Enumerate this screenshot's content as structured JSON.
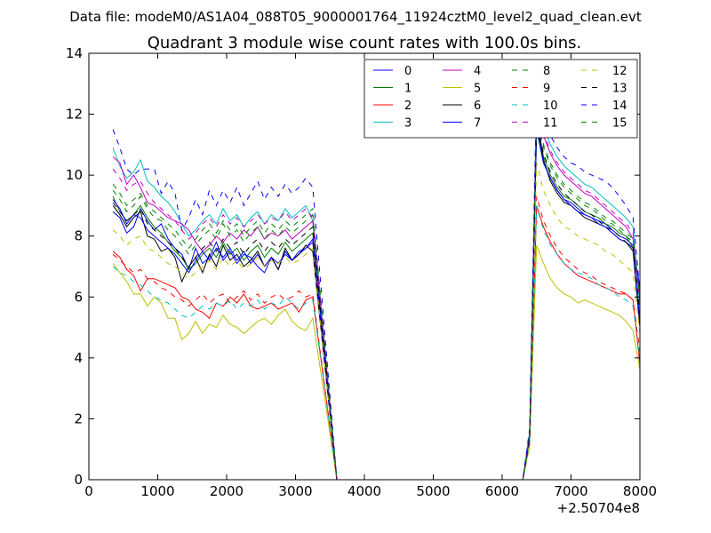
{
  "chart_data": {
    "type": "line",
    "suptitle": "Data file: modeM0/AS1A04_088T05_9000001764_11924cztM0_level2_quad_clean.evt",
    "title": "Quadrant 3 module wise count rates with 100.0s bins.",
    "xlabel": "",
    "ylabel": "",
    "x_offset_label": "+2.50704e8",
    "xlim": [
      0,
      8000
    ],
    "ylim": [
      0,
      14
    ],
    "xticks": [
      0,
      1000,
      2000,
      3000,
      4000,
      5000,
      6000,
      7000,
      8000
    ],
    "yticks": [
      0,
      2,
      4,
      6,
      8,
      10,
      12,
      14
    ],
    "grid": false,
    "legend_position": "top-right",
    "legend_columns": 4,
    "x_start": 350,
    "x_step": 100,
    "gap_interval": [
      3600,
      6300
    ],
    "series": [
      {
        "name": "0",
        "color": "#0000ff",
        "dashed": false,
        "first_segment": [
          8.8,
          8.6,
          8.1,
          8.3,
          8.9,
          8.5,
          8.2,
          8.4,
          7.9,
          7.6,
          7.4,
          6.9,
          7.6,
          7.1,
          7.3,
          7.8,
          7.2,
          7.5,
          7.1,
          7.4,
          7.3,
          7.0,
          6.8,
          7.3,
          6.9,
          7.5,
          7.2,
          7.4,
          7.6,
          7.8,
          0
        ],
        "second_segment": [
          0,
          1.4,
          11.5,
          10.4,
          9.9,
          9.5,
          9.2,
          9.1,
          8.9,
          8.7,
          8.6,
          8.5,
          8.4,
          8.2,
          8.0,
          7.9,
          7.7,
          6.3
        ]
      },
      {
        "name": "1",
        "color": "#008000",
        "dashed": false,
        "first_segment": [
          9.3,
          8.8,
          8.5,
          8.7,
          9.0,
          8.6,
          8.3,
          8.1,
          7.8,
          7.5,
          7.3,
          6.9,
          7.1,
          7.4,
          7.6,
          7.3,
          7.8,
          7.4,
          7.6,
          7.2,
          7.5,
          7.7,
          7.3,
          7.6,
          7.4,
          7.8,
          7.5,
          7.7,
          7.9,
          8.1,
          0
        ],
        "second_segment": [
          0,
          1.4,
          11.9,
          10.6,
          10.0,
          9.6,
          9.3,
          9.2,
          9.0,
          8.8,
          8.7,
          8.6,
          8.4,
          8.3,
          8.1,
          8.0,
          7.6,
          6.1
        ]
      },
      {
        "name": "2",
        "color": "#ff0000",
        "dashed": false,
        "first_segment": [
          7.5,
          7.3,
          6.9,
          6.7,
          6.2,
          6.6,
          6.6,
          6.5,
          6.4,
          6.3,
          6.0,
          5.9,
          5.6,
          5.5,
          5.3,
          5.8,
          5.7,
          6.0,
          5.8,
          6.1,
          5.7,
          5.6,
          5.7,
          5.8,
          5.6,
          5.7,
          5.8,
          5.5,
          5.9,
          6.0,
          0
        ],
        "second_segment": [
          0,
          1.2,
          9.0,
          8.3,
          7.8,
          7.4,
          7.1,
          6.9,
          6.7,
          6.6,
          6.5,
          6.4,
          6.3,
          6.2,
          6.1,
          6.1,
          5.9,
          3.8
        ]
      },
      {
        "name": "3",
        "color": "#00bfbf",
        "dashed": false,
        "first_segment": [
          10.9,
          10.3,
          9.9,
          10.1,
          10.5,
          9.8,
          9.6,
          9.3,
          9.1,
          8.8,
          8.4,
          8.0,
          8.2,
          8.5,
          8.7,
          8.4,
          8.9,
          8.5,
          8.7,
          8.3,
          8.6,
          8.8,
          8.4,
          8.7,
          8.5,
          8.9,
          8.6,
          8.8,
          9.0,
          8.5,
          0
        ],
        "second_segment": [
          0,
          1.6,
          12.6,
          11.6,
          11.0,
          10.6,
          10.3,
          10.1,
          9.9,
          9.7,
          9.6,
          9.4,
          9.2,
          9.0,
          8.8,
          8.6,
          8.3,
          5.5
        ]
      },
      {
        "name": "4",
        "color": "#bf00bf",
        "dashed": false,
        "first_segment": [
          10.6,
          10.4,
          9.7,
          10.0,
          9.6,
          9.1,
          9.0,
          8.8,
          8.6,
          8.5,
          8.4,
          8.2,
          7.8,
          7.5,
          7.7,
          8.0,
          7.8,
          8.1,
          7.9,
          8.2,
          8.0,
          8.3,
          7.9,
          8.1,
          8.0,
          8.2,
          7.9,
          8.1,
          8.3,
          8.5,
          0
        ],
        "second_segment": [
          0,
          1.5,
          12.2,
          11.3,
          10.7,
          10.3,
          10.0,
          9.8,
          9.6,
          9.4,
          9.3,
          9.1,
          8.9,
          8.7,
          8.5,
          8.3,
          7.9,
          5.9
        ]
      },
      {
        "name": "5",
        "color": "#bfbf00",
        "dashed": false,
        "first_segment": [
          7.1,
          6.8,
          6.5,
          6.1,
          6.1,
          5.7,
          6.0,
          5.8,
          5.3,
          5.3,
          4.6,
          4.8,
          5.2,
          4.8,
          5.1,
          5.0,
          5.4,
          5.1,
          5.0,
          4.8,
          5.0,
          5.2,
          5.3,
          5.1,
          5.4,
          5.6,
          5.2,
          5.0,
          4.9,
          5.3,
          0
        ],
        "second_segment": [
          0,
          1.1,
          7.7,
          7.1,
          6.6,
          6.3,
          6.1,
          6.0,
          5.8,
          5.9,
          5.8,
          5.7,
          5.6,
          5.5,
          5.4,
          5.2,
          4.9,
          3.6
        ]
      },
      {
        "name": "6",
        "color": "#000000",
        "dashed": false,
        "first_segment": [
          9.0,
          8.7,
          8.3,
          8.6,
          8.8,
          8.0,
          7.9,
          7.5,
          7.6,
          7.3,
          6.5,
          7.0,
          7.3,
          6.8,
          7.4,
          7.0,
          7.7,
          7.2,
          7.4,
          7.0,
          7.2,
          7.5,
          7.0,
          7.3,
          6.9,
          7.6,
          7.2,
          7.4,
          7.7,
          7.5,
          0
        ],
        "second_segment": [
          0,
          1.4,
          11.7,
          10.5,
          9.8,
          9.4,
          9.1,
          9.0,
          8.8,
          8.6,
          8.5,
          8.4,
          8.3,
          8.1,
          7.9,
          7.8,
          7.5,
          5.0
        ]
      },
      {
        "name": "7",
        "color": "#0000ff",
        "dashed": false,
        "first_segment": [
          9.2,
          8.9,
          8.4,
          8.7,
          8.6,
          8.2,
          8.0,
          7.8,
          7.6,
          7.4,
          7.1,
          6.8,
          7.2,
          7.5,
          7.2,
          7.6,
          7.3,
          7.6,
          7.2,
          7.5,
          7.1,
          7.4,
          7.0,
          7.3,
          7.1,
          7.4,
          7.2,
          7.5,
          7.6,
          7.9,
          0
        ],
        "second_segment": [
          0,
          1.4,
          11.6,
          10.4,
          9.9,
          9.5,
          9.2,
          9.0,
          8.8,
          8.7,
          8.6,
          8.4,
          8.3,
          8.1,
          7.9,
          7.8,
          7.6,
          5.2
        ]
      },
      {
        "name": "8",
        "color": "#008000",
        "dashed": true,
        "first_segment": [
          9.5,
          9.2,
          8.8,
          9.0,
          9.3,
          8.9,
          8.6,
          8.5,
          8.2,
          8.0,
          7.7,
          7.4,
          7.7,
          8.0,
          8.2,
          7.9,
          8.4,
          8.0,
          8.2,
          7.8,
          8.1,
          8.3,
          7.9,
          8.2,
          8.0,
          8.3,
          8.1,
          8.3,
          8.5,
          8.7,
          0
        ],
        "second_segment": [
          0,
          1.5,
          12.0,
          10.9,
          10.3,
          9.9,
          9.6,
          9.4,
          9.2,
          9.0,
          8.9,
          8.7,
          8.5,
          8.4,
          8.2,
          8.0,
          7.8,
          5.8
        ]
      },
      {
        "name": "9",
        "color": "#ff0000",
        "dashed": true,
        "first_segment": [
          7.4,
          7.2,
          7.0,
          6.8,
          6.9,
          6.6,
          6.5,
          6.3,
          6.2,
          6.0,
          5.9,
          5.7,
          5.9,
          6.1,
          5.8,
          6.0,
          6.1,
          5.8,
          6.0,
          6.2,
          5.9,
          6.1,
          5.8,
          6.0,
          6.1,
          5.9,
          6.0,
          6.2,
          6.0,
          6.1,
          0
        ],
        "second_segment": [
          0,
          1.2,
          9.3,
          8.5,
          8.0,
          7.6,
          7.3,
          7.1,
          6.9,
          6.8,
          6.7,
          6.5,
          6.4,
          6.3,
          6.2,
          6.1,
          5.9,
          4.2
        ]
      },
      {
        "name": "10",
        "color": "#00bfbf",
        "dashed": true,
        "first_segment": [
          7.0,
          6.8,
          6.7,
          6.5,
          6.4,
          6.2,
          6.0,
          5.9,
          5.8,
          5.6,
          5.4,
          5.3,
          5.5,
          5.7,
          5.6,
          5.8,
          5.7,
          5.9,
          5.6,
          5.8,
          5.7,
          5.9,
          5.6,
          5.8,
          5.7,
          6.0,
          5.8,
          5.6,
          5.8,
          5.9,
          0
        ],
        "second_segment": [
          0,
          1.2,
          9.0,
          8.2,
          7.7,
          7.4,
          7.1,
          6.9,
          6.8,
          6.7,
          6.6,
          6.4,
          6.3,
          6.2,
          6.0,
          5.9,
          5.7,
          4.0
        ]
      },
      {
        "name": "11",
        "color": "#bf00bf",
        "dashed": true,
        "first_segment": [
          10.2,
          9.9,
          9.5,
          9.7,
          9.8,
          9.4,
          9.1,
          8.9,
          8.7,
          8.5,
          8.2,
          7.9,
          8.1,
          8.4,
          8.6,
          8.3,
          8.7,
          8.4,
          8.6,
          8.3,
          8.5,
          8.7,
          8.4,
          8.6,
          8.5,
          8.8,
          8.5,
          8.7,
          8.9,
          8.6,
          0
        ],
        "second_segment": [
          0,
          1.6,
          12.4,
          11.4,
          10.8,
          10.4,
          10.1,
          9.9,
          9.7,
          9.5,
          9.4,
          9.2,
          9.0,
          8.8,
          8.6,
          8.4,
          8.1,
          5.7
        ]
      },
      {
        "name": "12",
        "color": "#bfbf00",
        "dashed": true,
        "first_segment": [
          8.2,
          8.0,
          7.7,
          7.9,
          8.0,
          7.6,
          7.5,
          7.3,
          7.1,
          7.0,
          6.8,
          6.6,
          6.8,
          7.0,
          7.2,
          6.9,
          7.3,
          7.0,
          7.2,
          6.9,
          7.1,
          7.3,
          7.0,
          7.2,
          7.1,
          7.3,
          7.1,
          7.2,
          7.4,
          7.6,
          0
        ],
        "second_segment": [
          0,
          1.3,
          10.4,
          9.5,
          9.0,
          8.6,
          8.3,
          8.2,
          8.0,
          7.9,
          7.8,
          7.7,
          7.5,
          7.4,
          7.2,
          7.0,
          6.8,
          4.8
        ]
      },
      {
        "name": "13",
        "color": "#000000",
        "dashed": true,
        "first_segment": [
          9.1,
          8.8,
          8.5,
          8.7,
          8.9,
          8.4,
          8.2,
          8.0,
          7.8,
          7.6,
          7.3,
          7.0,
          7.3,
          7.6,
          7.8,
          7.5,
          7.9,
          7.6,
          7.8,
          7.4,
          7.7,
          7.9,
          7.5,
          7.8,
          7.6,
          7.9,
          7.7,
          7.9,
          8.1,
          8.3,
          0
        ],
        "second_segment": [
          0,
          1.4,
          11.8,
          10.7,
          10.1,
          9.7,
          9.4,
          9.2,
          9.0,
          8.8,
          8.7,
          8.5,
          8.3,
          8.2,
          8.0,
          7.8,
          7.6,
          5.4
        ]
      },
      {
        "name": "14",
        "color": "#0000ff",
        "dashed": true,
        "first_segment": [
          11.5,
          10.9,
          10.2,
          10.0,
          10.2,
          10.2,
          10.2,
          9.4,
          9.8,
          9.4,
          8.2,
          8.6,
          9.2,
          8.7,
          9.5,
          9.0,
          9.5,
          9.1,
          9.6,
          9.0,
          9.4,
          9.8,
          9.2,
          9.6,
          9.3,
          9.7,
          9.4,
          9.6,
          9.9,
          9.6,
          0
        ],
        "second_segment": [
          0,
          1.7,
          13.0,
          11.9,
          11.3,
          10.9,
          10.6,
          10.4,
          10.3,
          10.1,
          10.0,
          9.9,
          9.8,
          9.6,
          9.3,
          9.0,
          8.6,
          6.2
        ]
      },
      {
        "name": "15",
        "color": "#008000",
        "dashed": true,
        "first_segment": [
          9.7,
          9.4,
          9.0,
          9.2,
          9.4,
          9.0,
          8.8,
          8.6,
          8.4,
          8.2,
          7.9,
          7.6,
          7.9,
          8.2,
          8.4,
          8.1,
          8.5,
          8.2,
          8.4,
          8.0,
          8.3,
          8.5,
          8.1,
          8.4,
          8.2,
          8.5,
          8.3,
          8.5,
          8.7,
          8.9,
          0
        ],
        "second_segment": [
          0,
          1.5,
          12.1,
          11.0,
          10.4,
          10.0,
          9.7,
          9.5,
          9.3,
          9.1,
          9.0,
          8.8,
          8.6,
          8.5,
          8.3,
          8.1,
          7.9,
          6.0
        ]
      }
    ]
  }
}
